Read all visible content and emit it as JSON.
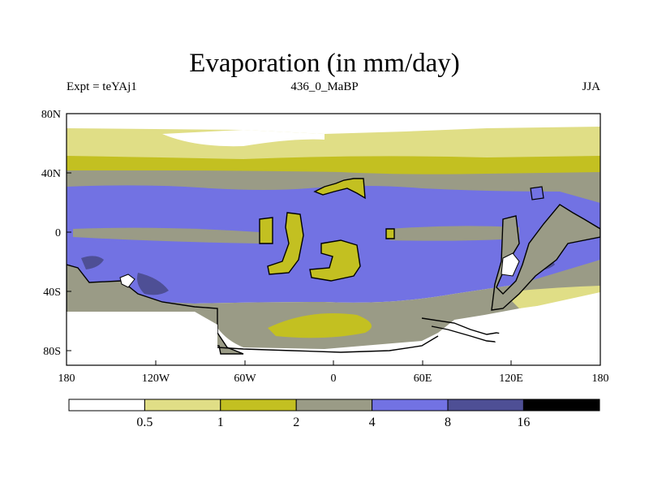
{
  "figure": {
    "title": "Evaporation (in mm/day)",
    "left_label": "Expt = teYAj1",
    "center_label": "436_0_MaBP",
    "right_label": "JJA"
  },
  "axes": {
    "x_ticks": [
      "180",
      "120W",
      "60W",
      "0",
      "60E",
      "120E",
      "180"
    ],
    "y_ticks": [
      "80N",
      "40N",
      "0",
      "40S",
      "80S"
    ]
  },
  "colorbar": {
    "labels": [
      "0.5",
      "1",
      "2",
      "4",
      "8",
      "16"
    ],
    "colors": [
      "#ffffff",
      "#e0de86",
      "#c3c021",
      "#9a9b86",
      "#7272e3",
      "#4e4f95",
      "#000000"
    ]
  },
  "map": {
    "bands": [
      {
        "name": "north-polar-white",
        "color": "#ffffff"
      },
      {
        "name": "north-light-yellow",
        "color": "#e0de86"
      },
      {
        "name": "north-olive",
        "color": "#c3c021"
      },
      {
        "name": "north-gray",
        "color": "#9a9b86"
      },
      {
        "name": "tropical-blue",
        "color": "#7272e3"
      },
      {
        "name": "south-gray",
        "color": "#9a9b86"
      },
      {
        "name": "south-white",
        "color": "#ffffff"
      }
    ]
  }
}
